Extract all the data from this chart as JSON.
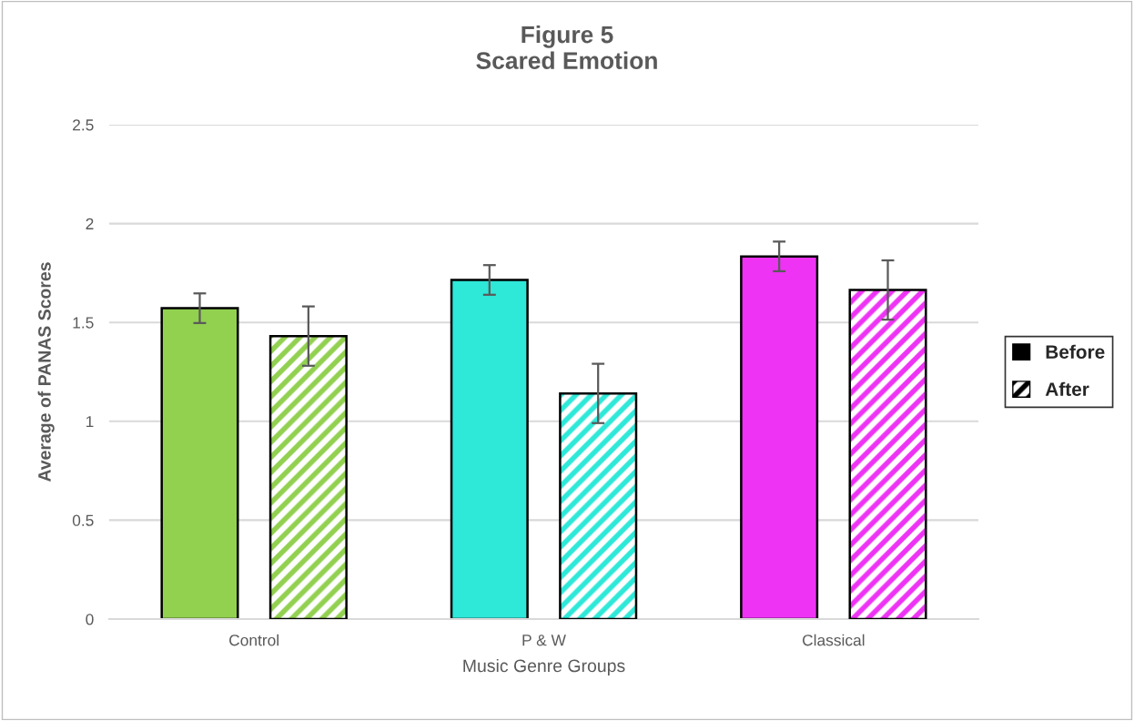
{
  "chart_data": {
    "type": "bar",
    "title": "Figure 5\nScared Emotion",
    "xlabel": "Music Genre Groups",
    "ylabel": "Average of PANAS Scores",
    "categories": [
      "Control",
      "P & W",
      "Classical"
    ],
    "series": [
      {
        "name": "Before",
        "color": "#000000",
        "colors": [
          "#92d050",
          "#2ee8d8",
          "#ee33f5"
        ],
        "values": [
          1.572,
          1.715,
          1.834
        ],
        "errors": [
          0.075,
          0.075,
          0.075
        ]
      },
      {
        "name": "After",
        "color": "#000000",
        "colors": [
          "#92d050",
          "#2ee8d8",
          "#ee33f5"
        ],
        "values": [
          1.431,
          1.141,
          1.664
        ],
        "errors": [
          0.15,
          0.15,
          0.15
        ]
      }
    ],
    "ylim": [
      0,
      2.5
    ],
    "yticks": [
      0,
      0.5,
      1,
      1.5,
      2,
      2.5
    ],
    "grid": "y",
    "legend": "right"
  }
}
